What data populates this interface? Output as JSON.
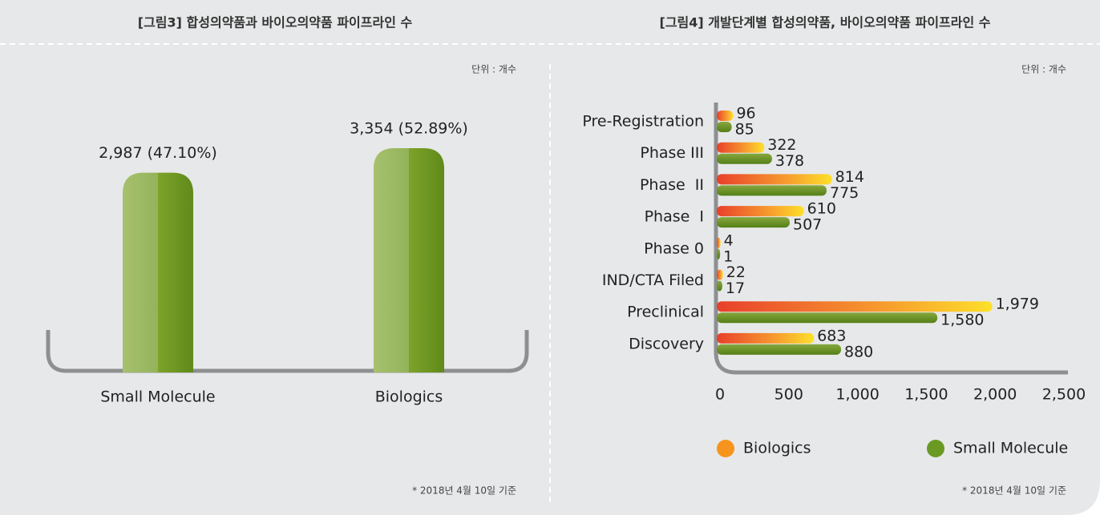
{
  "chart_data": [
    {
      "type": "bar",
      "title": "[그림3] 합성의약품과 바이오의약품 파이프라인 수",
      "unit": "단위 : 개수",
      "note": "* 2018년 4월 10일 기준",
      "categories": [
        "Small Molecule",
        "Biologics"
      ],
      "values": [
        2987,
        3354
      ],
      "value_labels": [
        "2,987 (47.10%)",
        "3,354 (52.89%)"
      ],
      "color": "#6a9a23"
    },
    {
      "type": "hbar",
      "title": "[그림4] 개발단계별 합성의약품, 바이오의약품 파이프라인 수",
      "unit": "단위 : 개수",
      "note": "* 2018년 4월 10일 기준",
      "categories": [
        "Pre-Registration",
        "Phase III",
        "Phase  II",
        "Phase  I",
        "Phase 0",
        "IND/CTA Filed",
        "Preclinical",
        "Discovery"
      ],
      "series": [
        {
          "name": "Biologics",
          "color": "#f7941d",
          "values": [
            96,
            322,
            814,
            610,
            4,
            22,
            1979,
            683
          ],
          "value_labels": [
            "96",
            "322",
            "814",
            "610",
            "4",
            "22",
            "1,979",
            "683"
          ]
        },
        {
          "name": "Small Molecule",
          "color": "#6a9a23",
          "values": [
            85,
            378,
            775,
            507,
            1,
            17,
            1580,
            880
          ],
          "value_labels": [
            "85",
            "378",
            "775",
            "507",
            "1",
            "17",
            "1,580",
            "880"
          ]
        }
      ],
      "xlim": [
        0,
        2500
      ],
      "xticks": [
        0,
        500,
        {
          "value": 1000,
          "label": "1,000"
        },
        {
          "value": 1500,
          "label": "1,500"
        },
        {
          "value": 2000,
          "label": "2,000"
        },
        {
          "value": 2500,
          "label": "2,500"
        }
      ],
      "legend": "bottom"
    }
  ]
}
